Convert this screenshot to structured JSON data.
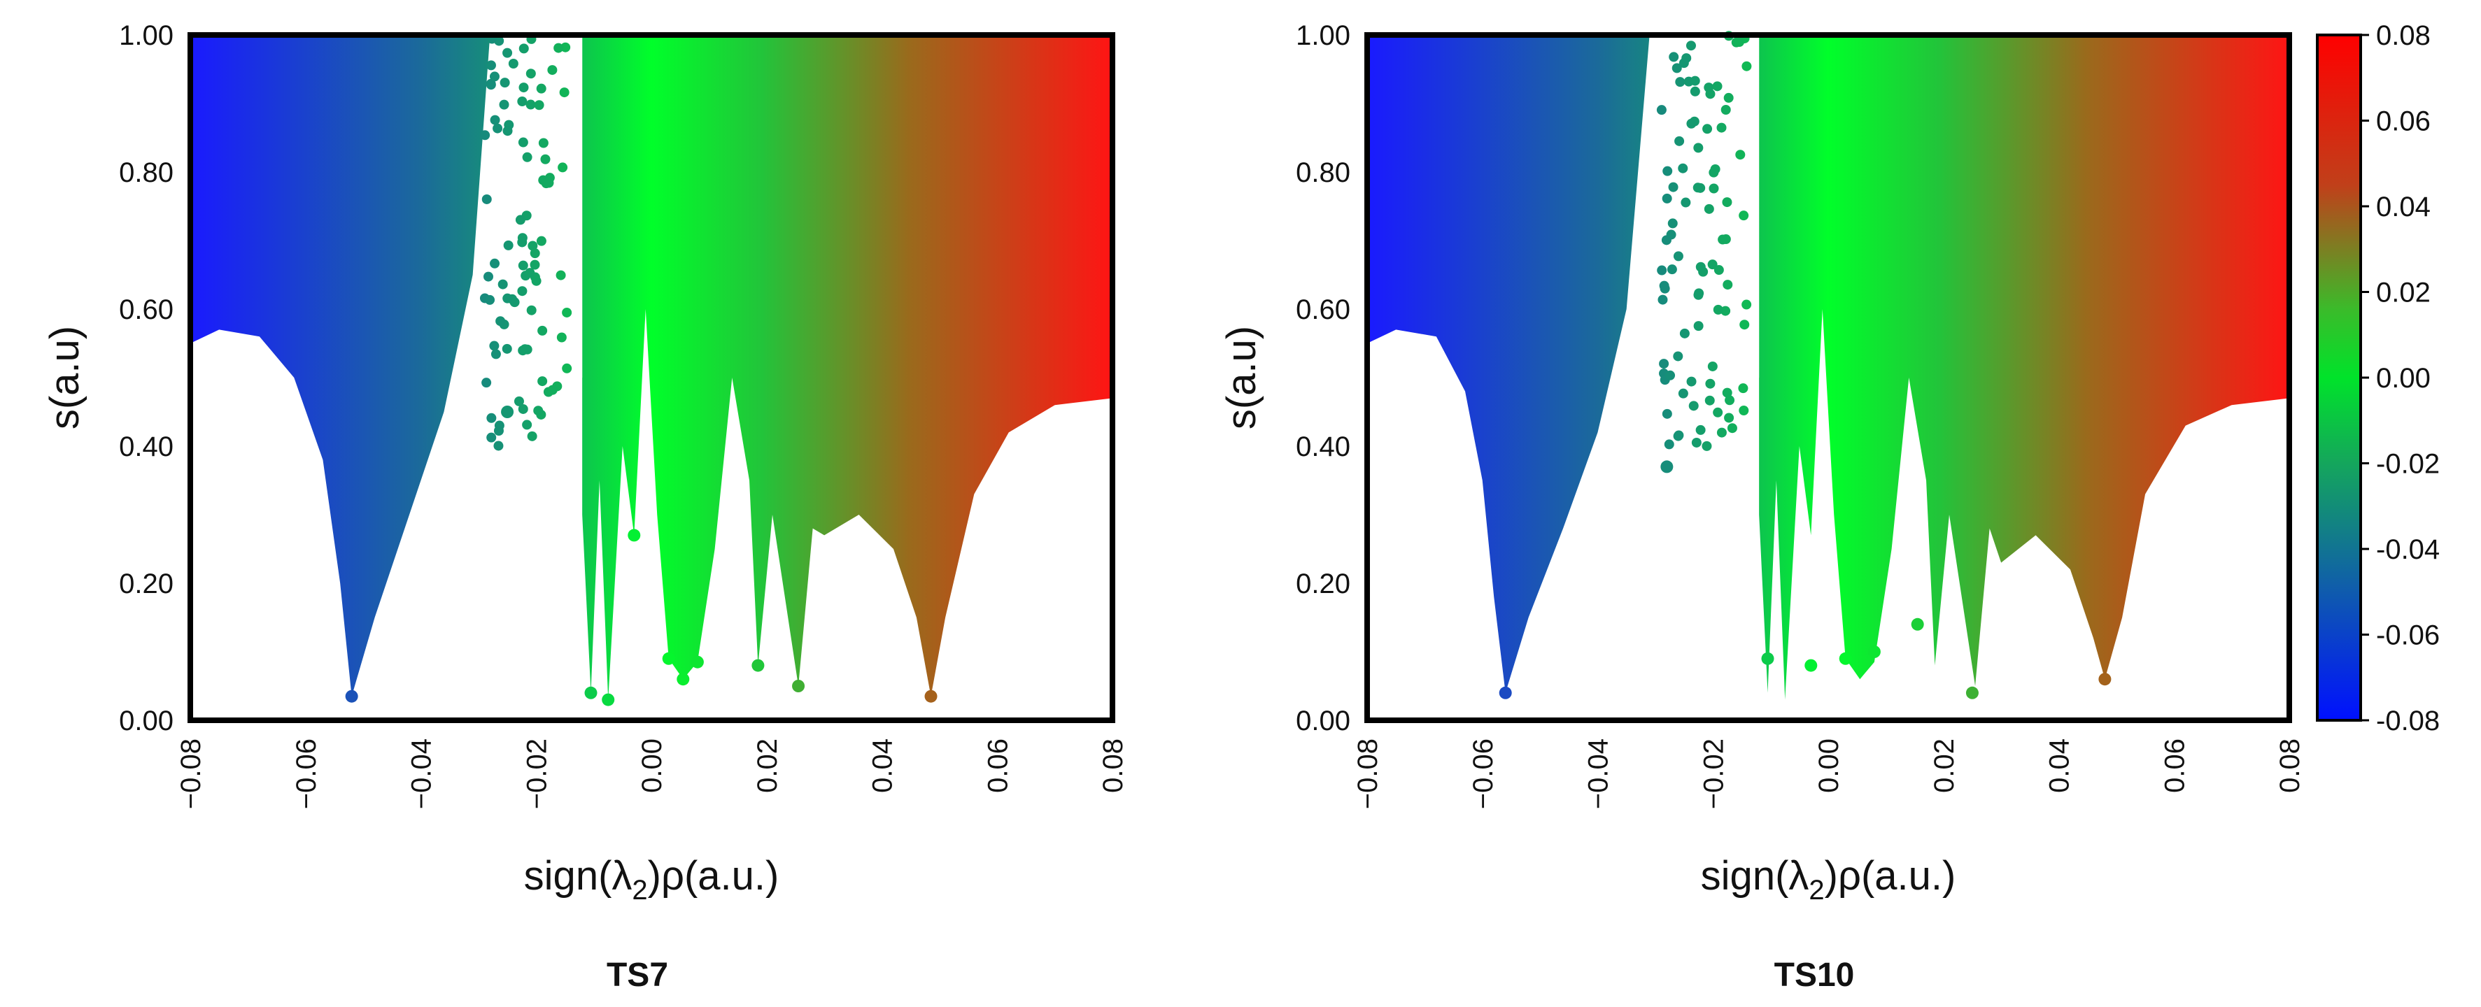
{
  "panels": [
    {
      "caption": "TS7"
    },
    {
      "caption": "TS10"
    }
  ],
  "chart_data": [
    {
      "type": "scatter",
      "title": "",
      "caption": "TS7",
      "xlabel": "sign(λ2)ρ(a.u.)",
      "xlabel_parts": {
        "pre": "sign(λ",
        "sub": "2",
        "post": ")ρ(a.u.)"
      },
      "ylabel": "s(a.u)",
      "xlim": [
        -0.08,
        0.08
      ],
      "ylim": [
        0.0,
        1.0
      ],
      "x_ticks": [
        "-0.08",
        "-0.06",
        "-0.04",
        "-0.02",
        "0.00",
        "0.02",
        "0.04",
        "0.06",
        "0.08"
      ],
      "y_ticks": [
        "0.00",
        "0.20",
        "0.40",
        "0.60",
        "0.80",
        "1.00"
      ],
      "color_by": "x",
      "grid": false,
      "spike_tips": [
        {
          "x": -0.052,
          "s": 0.035
        },
        {
          "x": -0.025,
          "s": 0.45
        },
        {
          "x": -0.0105,
          "s": 0.04
        },
        {
          "x": -0.0075,
          "s": 0.03
        },
        {
          "x": -0.003,
          "s": 0.27
        },
        {
          "x": 0.003,
          "s": 0.09
        },
        {
          "x": 0.0055,
          "s": 0.06
        },
        {
          "x": 0.008,
          "s": 0.085
        },
        {
          "x": 0.0185,
          "s": 0.08
        },
        {
          "x": 0.0255,
          "s": 0.05
        },
        {
          "x": 0.0485,
          "s": 0.035
        }
      ],
      "background_edge": [
        {
          "x": -0.08,
          "s": 0.55
        },
        {
          "x": -0.075,
          "s": 0.57
        },
        {
          "x": -0.068,
          "s": 0.56
        },
        {
          "x": -0.062,
          "s": 0.5
        },
        {
          "x": -0.057,
          "s": 0.38
        },
        {
          "x": -0.054,
          "s": 0.2
        },
        {
          "x": -0.052,
          "s": 0.035
        },
        {
          "x": -0.048,
          "s": 0.15
        },
        {
          "x": -0.042,
          "s": 0.3
        },
        {
          "x": -0.036,
          "s": 0.45
        },
        {
          "x": -0.031,
          "s": 0.65
        },
        {
          "x": -0.028,
          "s": 1.0
        }
      ],
      "right_edge": [
        {
          "x": 0.03,
          "s": 0.27
        },
        {
          "x": 0.036,
          "s": 0.3
        },
        {
          "x": 0.042,
          "s": 0.25
        },
        {
          "x": 0.046,
          "s": 0.15
        },
        {
          "x": 0.0485,
          "s": 0.035
        },
        {
          "x": 0.051,
          "s": 0.15
        },
        {
          "x": 0.056,
          "s": 0.33
        },
        {
          "x": 0.062,
          "s": 0.42
        },
        {
          "x": 0.07,
          "s": 0.46
        },
        {
          "x": 0.08,
          "s": 0.47
        }
      ]
    },
    {
      "type": "scatter",
      "title": "",
      "caption": "TS10",
      "xlabel": "sign(λ2)ρ(a.u.)",
      "xlabel_parts": {
        "pre": "sign(λ",
        "sub": "2",
        "post": ")ρ(a.u.)"
      },
      "ylabel": "s(a.u)",
      "xlim": [
        -0.08,
        0.08
      ],
      "ylim": [
        0.0,
        1.0
      ],
      "x_ticks": [
        "-0.08",
        "-0.06",
        "-0.04",
        "-0.02",
        "0.00",
        "0.02",
        "0.04",
        "0.06",
        "0.08"
      ],
      "y_ticks": [
        "0.00",
        "0.20",
        "0.40",
        "0.60",
        "0.80",
        "1.00"
      ],
      "color_by": "x",
      "grid": false,
      "colorbar": {
        "range": [
          -0.08,
          0.08
        ],
        "ticks": [
          "0.08",
          "0.06",
          "0.04",
          "0.02",
          "0.00",
          "-0.02",
          "-0.04",
          "-0.06",
          "-0.08"
        ],
        "colors": [
          "#ff0000",
          "#00dd22",
          "#0000ff"
        ]
      },
      "spike_tips": [
        {
          "x": -0.056,
          "s": 0.04
        },
        {
          "x": -0.028,
          "s": 0.37
        },
        {
          "x": -0.0105,
          "s": 0.09
        },
        {
          "x": -0.003,
          "s": 0.08
        },
        {
          "x": 0.003,
          "s": 0.09
        },
        {
          "x": 0.008,
          "s": 0.1
        },
        {
          "x": 0.0155,
          "s": 0.14
        },
        {
          "x": 0.025,
          "s": 0.04
        },
        {
          "x": 0.048,
          "s": 0.06
        }
      ],
      "background_edge": [
        {
          "x": -0.08,
          "s": 0.55
        },
        {
          "x": -0.075,
          "s": 0.57
        },
        {
          "x": -0.068,
          "s": 0.56
        },
        {
          "x": -0.063,
          "s": 0.48
        },
        {
          "x": -0.06,
          "s": 0.35
        },
        {
          "x": -0.058,
          "s": 0.18
        },
        {
          "x": -0.056,
          "s": 0.04
        },
        {
          "x": -0.052,
          "s": 0.15
        },
        {
          "x": -0.046,
          "s": 0.28
        },
        {
          "x": -0.04,
          "s": 0.42
        },
        {
          "x": -0.035,
          "s": 0.6
        },
        {
          "x": -0.031,
          "s": 1.0
        }
      ],
      "right_edge": [
        {
          "x": 0.03,
          "s": 0.23
        },
        {
          "x": 0.036,
          "s": 0.27
        },
        {
          "x": 0.042,
          "s": 0.22
        },
        {
          "x": 0.046,
          "s": 0.12
        },
        {
          "x": 0.048,
          "s": 0.06
        },
        {
          "x": 0.051,
          "s": 0.15
        },
        {
          "x": 0.055,
          "s": 0.33
        },
        {
          "x": 0.062,
          "s": 0.43
        },
        {
          "x": 0.07,
          "s": 0.46
        },
        {
          "x": 0.08,
          "s": 0.47
        }
      ]
    }
  ]
}
